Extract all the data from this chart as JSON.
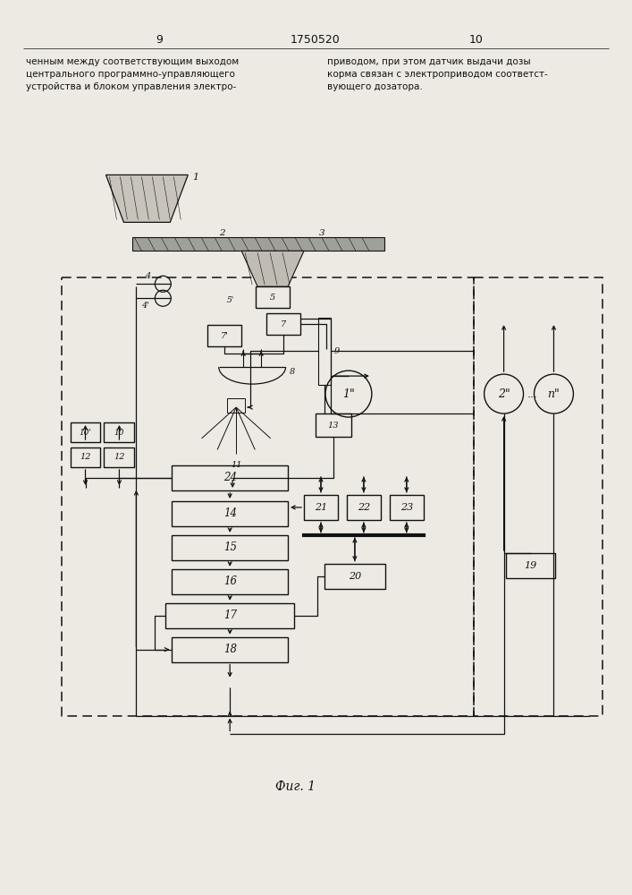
{
  "bg_color": "#edeae3",
  "lc": "#111111",
  "page_left": "9",
  "patent": "1750520",
  "page_right": "10",
  "text_left": "ченным между соответствующим выходом\nцентрального программно-управляющего\nустройства и блоком управления электро-",
  "text_right": "приводом, при этом датчик выдачи дозы\nкорма связан с электроприводом соответст-\nвующего дозатора.",
  "caption": "Фиг. 1"
}
